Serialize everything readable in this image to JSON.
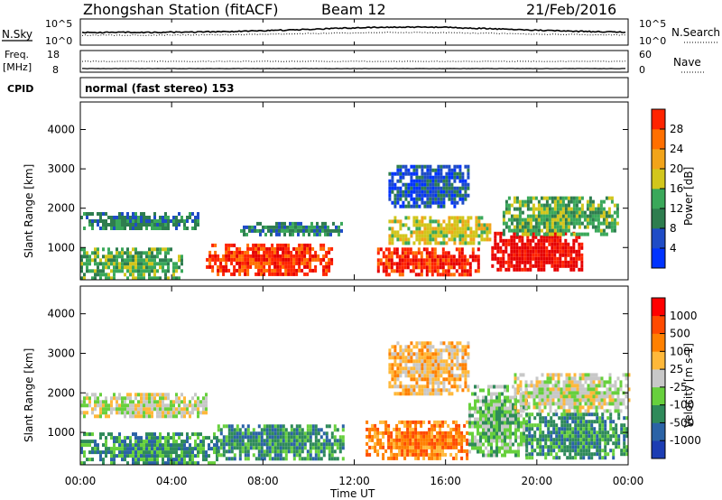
{
  "header": {
    "station": "Zhongshan Station (fitACF)",
    "beam": "Beam 12",
    "date": "21/Feb/2016"
  },
  "sky_panel": {
    "left_label": "N.Sky",
    "left_ticks": [
      "10^5",
      "10^0"
    ],
    "right_label": "N.Search",
    "right_ticks": [
      "10^5",
      "10^0"
    ]
  },
  "freq_panel": {
    "left_label_1": "Freq.",
    "left_label_2": "[MHz]",
    "left_ticks": [
      "18",
      "8"
    ],
    "right_label": "Nave",
    "right_ticks": [
      "60",
      "0"
    ]
  },
  "cpid": {
    "label": "CPID",
    "value": "normal (fast stereo) 153"
  },
  "colors": {
    "power_scale": [
      "#0033ff",
      "#1f4cc6",
      "#2e7d4f",
      "#3aa85a",
      "#d2c61c",
      "#f2a41a",
      "#ff6f00",
      "#ff2400",
      "#e60000"
    ],
    "velocity_scale": [
      "#1c3db3",
      "#2b63a6",
      "#2f8a5a",
      "#67d03d",
      "#c8c8c8",
      "#ffb83a",
      "#ff8000",
      "#ff4a00",
      "#ff0000"
    ]
  },
  "chart_data": [
    {
      "type": "heatmap",
      "title": "Power",
      "ylabel": "Slant Range [km]",
      "xlabel": "Time UT",
      "ylim": [
        180,
        4700
      ],
      "yticks": [
        1000,
        2000,
        3000,
        4000
      ],
      "xlim": [
        0,
        24
      ],
      "colorbar_label": "Power [dB]",
      "colorbar_ticks": [
        "4",
        "8",
        "12",
        "16",
        "20",
        "24",
        "28"
      ],
      "colorbar_range": [
        0,
        32
      ],
      "regions": [
        {
          "t0": 0.0,
          "t1": 5.2,
          "r0": 1450,
          "r1": 1900,
          "level": 2
        },
        {
          "t0": 0.0,
          "t1": 4.5,
          "r0": 250,
          "r1": 1000,
          "level": 3
        },
        {
          "t0": 5.5,
          "t1": 11.0,
          "r0": 350,
          "r1": 1100,
          "level": 7
        },
        {
          "t0": 7.0,
          "t1": 11.5,
          "r0": 1350,
          "r1": 1650,
          "level": 2
        },
        {
          "t0": 13.0,
          "t1": 17.5,
          "r0": 350,
          "r1": 1000,
          "level": 7
        },
        {
          "t0": 13.5,
          "t1": 18.0,
          "r0": 1100,
          "r1": 1800,
          "level": 4
        },
        {
          "t0": 13.5,
          "t1": 17.0,
          "r0": 2000,
          "r1": 3100,
          "level": 1
        },
        {
          "t0": 18.0,
          "t1": 22.0,
          "r0": 400,
          "r1": 1400,
          "level": 8
        },
        {
          "t0": 18.5,
          "t1": 23.5,
          "r0": 1300,
          "r1": 2300,
          "level": 3
        }
      ]
    },
    {
      "type": "heatmap",
      "title": "Velocity",
      "ylabel": "Slant Range [km]",
      "xlabel": "Time UT",
      "ylim": [
        180,
        4700
      ],
      "yticks": [
        1000,
        2000,
        3000,
        4000
      ],
      "xlim": [
        0,
        24
      ],
      "xticks": [
        "00:00",
        "04:00",
        "08:00",
        "12:00",
        "16:00",
        "20:00",
        "00:00"
      ],
      "colorbar_label": "Velocity [m s-1]",
      "colorbar_ticks": [
        "1000",
        "500",
        "100",
        "25",
        "-25",
        "-100",
        "-500",
        "-1000"
      ],
      "regions": [
        {
          "t0": 0.0,
          "t1": 5.5,
          "r0": 1400,
          "r1": 2000,
          "level": 4
        },
        {
          "t0": 0.0,
          "t1": 6.0,
          "r0": 250,
          "r1": 1000,
          "level": 2
        },
        {
          "t0": 6.0,
          "t1": 11.5,
          "r0": 350,
          "r1": 1200,
          "level": 2
        },
        {
          "t0": 12.5,
          "t1": 17.0,
          "r0": 350,
          "r1": 1300,
          "level": 6
        },
        {
          "t0": 13.5,
          "t1": 17.0,
          "r0": 2000,
          "r1": 3300,
          "level": 5
        },
        {
          "t0": 17.0,
          "t1": 19.5,
          "r0": 400,
          "r1": 2200,
          "level": 3
        },
        {
          "t0": 19.5,
          "t1": 24.0,
          "r0": 350,
          "r1": 1500,
          "level": 2
        },
        {
          "t0": 19.0,
          "t1": 24.0,
          "r0": 1500,
          "r1": 2500,
          "level": 4
        }
      ]
    }
  ]
}
